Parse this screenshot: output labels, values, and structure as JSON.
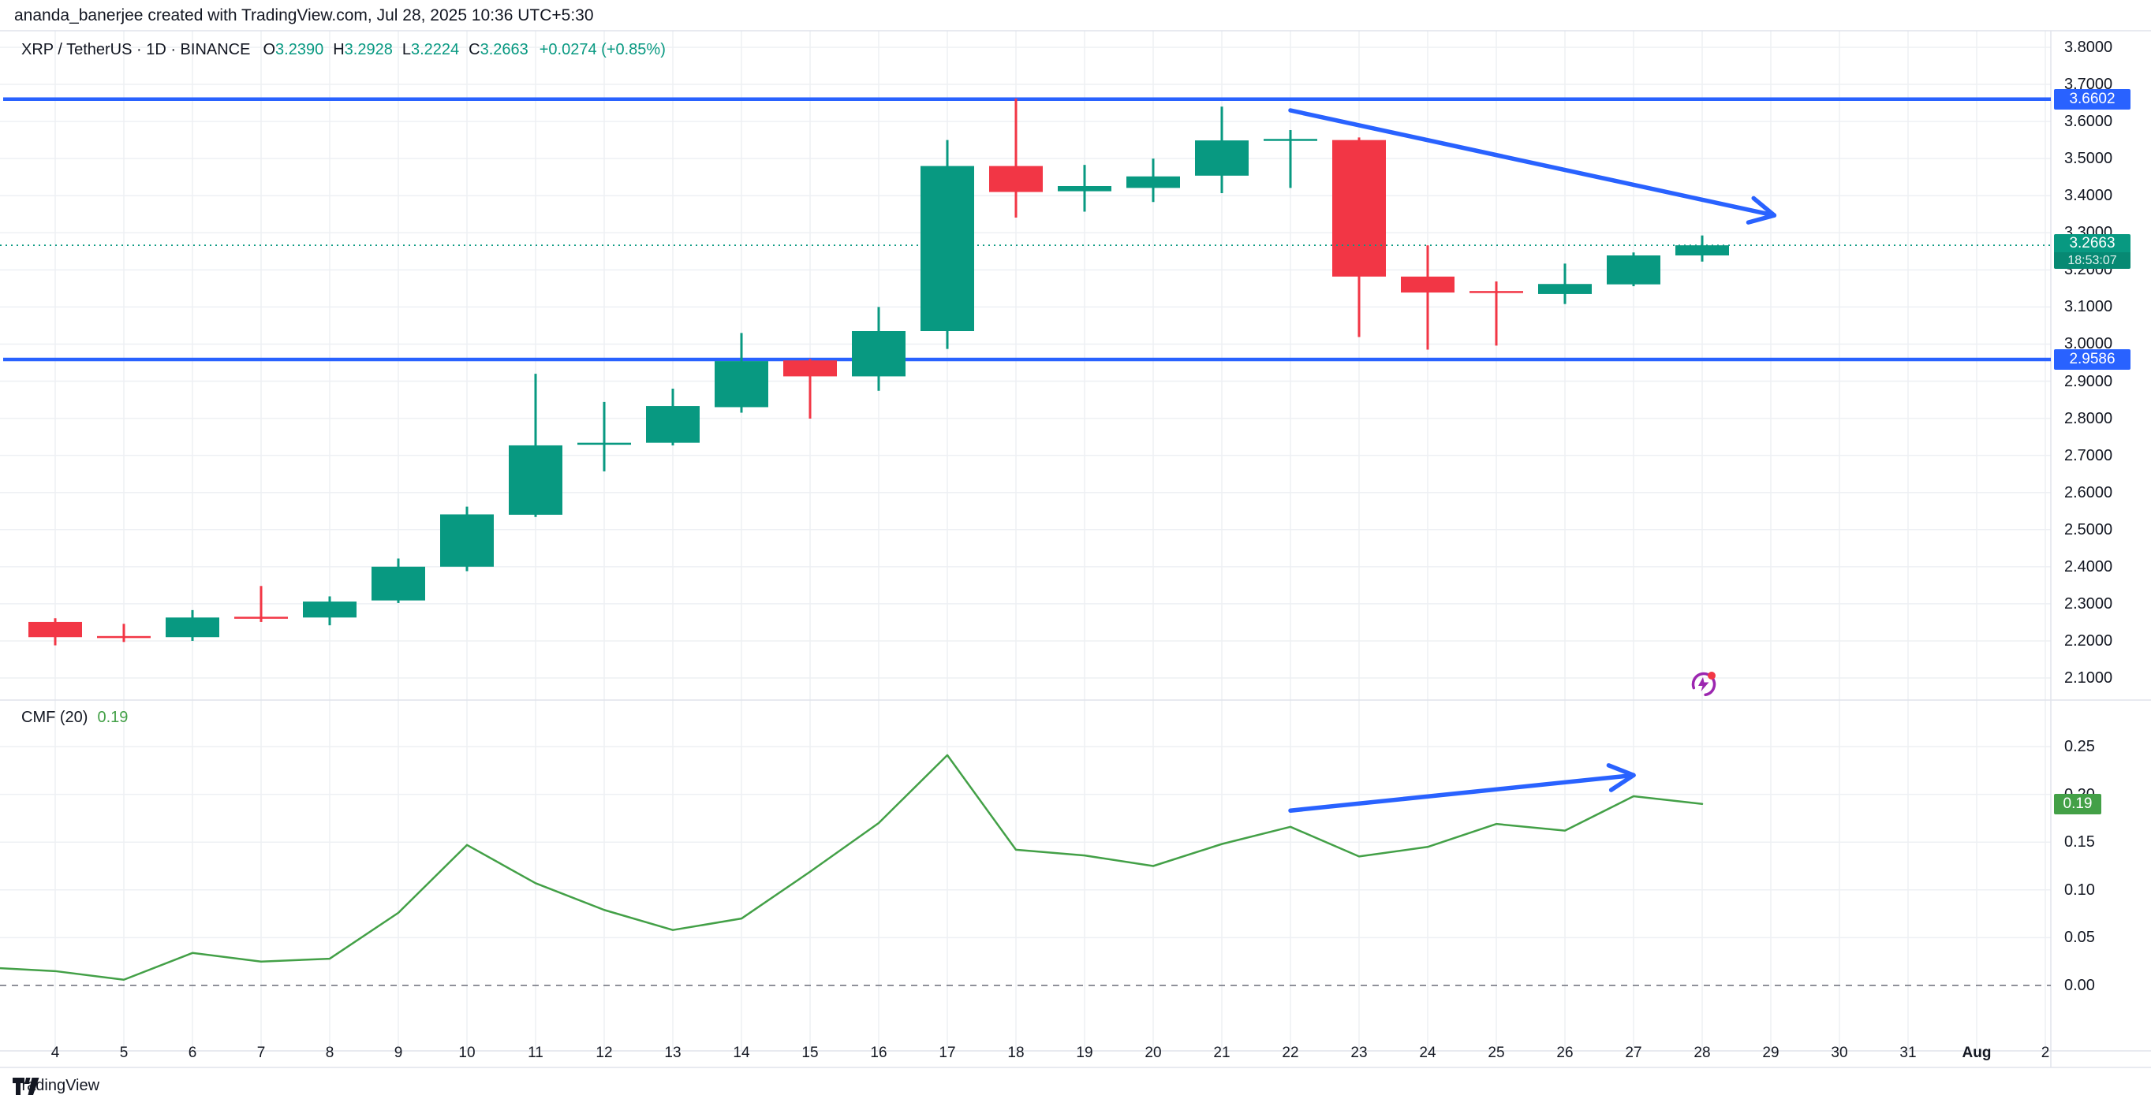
{
  "header": {
    "credit": "ananda_banerjee created with TradingView.com, Jul 28, 2025 10:36 UTC+5:30"
  },
  "legend": {
    "symbol_line": "XRP / TetherUS · 1D · BINANCE",
    "ohlc": [
      {
        "label": "O",
        "value": "3.2390"
      },
      {
        "label": "H",
        "value": "3.2928"
      },
      {
        "label": "L",
        "value": "3.2224"
      },
      {
        "label": "C",
        "value": "3.2663"
      }
    ],
    "change": "+0.0274 (+0.85%)"
  },
  "indicator": {
    "name": "CMF (20)",
    "value": "0.19"
  },
  "price_axis": {
    "labels": [
      "3.8000",
      "3.7000",
      "3.6000",
      "3.5000",
      "3.4000",
      "3.3000",
      "3.2000",
      "3.1000",
      "3.0000",
      "2.9000",
      "2.8000",
      "2.7000",
      "2.6000",
      "2.5000",
      "2.4000",
      "2.3000",
      "2.2000",
      "2.1000"
    ],
    "level_badges": [
      {
        "text": "3.6602"
      },
      {
        "text": "2.9586"
      }
    ],
    "last_badge": {
      "price": "3.2663",
      "countdown": "18:53:07"
    }
  },
  "cmf_axis": {
    "labels": [
      "0.25",
      "0.20",
      "0.15",
      "0.10",
      "0.05",
      "0.00"
    ],
    "badge": "0.19"
  },
  "time_axis": {
    "labels": [
      "4",
      "5",
      "6",
      "7",
      "8",
      "9",
      "10",
      "11",
      "12",
      "13",
      "14",
      "15",
      "16",
      "17",
      "18",
      "19",
      "20",
      "21",
      "22",
      "23",
      "24",
      "25",
      "26",
      "27",
      "28",
      "29",
      "30",
      "31",
      "Aug",
      "2"
    ],
    "bold_label": "Aug"
  },
  "watermark": {
    "brand": "TradingView"
  },
  "colors": {
    "up": "#089981",
    "down": "#F23645",
    "blue": "#2962FF",
    "cmf_line": "#43A047",
    "text": "#131722",
    "grid": "#EEF0F4",
    "axis_border": "#E0E3EB",
    "zero_line": "#6A6D78",
    "icon_purple": "#9C27B0",
    "icon_dot": "#F23645"
  },
  "chart_data": [
    {
      "type": "candlestick",
      "title": "XRP / TetherUS 1D BINANCE",
      "x_dates_july": [
        4,
        5,
        6,
        7,
        8,
        9,
        10,
        11,
        12,
        13,
        14,
        15,
        16,
        17,
        18,
        19,
        20,
        21,
        22,
        23,
        24,
        25,
        26,
        27,
        28
      ],
      "ohlc": [
        [
          2.251,
          2.261,
          2.188,
          2.21
        ],
        [
          2.213,
          2.246,
          2.197,
          2.209
        ],
        [
          2.21,
          2.283,
          2.2,
          2.263
        ],
        [
          2.265,
          2.348,
          2.251,
          2.26
        ],
        [
          2.263,
          2.32,
          2.242,
          2.306
        ],
        [
          2.309,
          2.422,
          2.302,
          2.4
        ],
        [
          2.4,
          2.562,
          2.388,
          2.541
        ],
        [
          2.54,
          2.92,
          2.534,
          2.727
        ],
        [
          2.73,
          2.844,
          2.657,
          2.734
        ],
        [
          2.734,
          2.88,
          2.727,
          2.833
        ],
        [
          2.83,
          3.03,
          2.815,
          2.954
        ],
        [
          2.956,
          2.96,
          2.799,
          2.913
        ],
        [
          2.913,
          3.1,
          2.874,
          3.035
        ],
        [
          3.035,
          3.55,
          2.987,
          3.48
        ],
        [
          3.48,
          3.662,
          3.341,
          3.41
        ],
        [
          3.412,
          3.483,
          3.357,
          3.426
        ],
        [
          3.421,
          3.5,
          3.383,
          3.452
        ],
        [
          3.454,
          3.64,
          3.407,
          3.549
        ],
        [
          3.549,
          3.577,
          3.421,
          3.553
        ],
        [
          3.55,
          3.557,
          3.019,
          3.182
        ],
        [
          3.182,
          3.266,
          2.985,
          3.139
        ],
        [
          3.143,
          3.169,
          2.996,
          3.138
        ],
        [
          3.135,
          3.217,
          3.108,
          3.162
        ],
        [
          3.161,
          3.247,
          3.156,
          3.239
        ],
        [
          3.239,
          3.2928,
          3.2224,
          3.2663
        ]
      ],
      "ylim": [
        2.04,
        3.845
      ],
      "y_ticks": [
        2.1,
        2.2,
        2.3,
        2.4,
        2.5,
        2.6,
        2.7,
        2.8,
        2.9,
        3.0,
        3.1,
        3.2,
        3.3,
        3.4,
        3.5,
        3.6,
        3.7,
        3.8
      ],
      "levels": [
        3.6602,
        2.9586
      ],
      "last_price": 3.2663,
      "grid": true,
      "legend_position": "top-left"
    },
    {
      "type": "line",
      "title": "CMF (20)",
      "x_dates_july": [
        3.2,
        4,
        5,
        6,
        7,
        8,
        9,
        10,
        11,
        12,
        13,
        14,
        15,
        16,
        17,
        18,
        19,
        20,
        21,
        22,
        23,
        24,
        25,
        26,
        27,
        28
      ],
      "values": [
        0.018,
        0.015,
        0.006,
        0.034,
        0.025,
        0.028,
        0.076,
        0.147,
        0.107,
        0.079,
        0.058,
        0.07,
        0.119,
        0.17,
        0.241,
        0.142,
        0.136,
        0.125,
        0.148,
        0.166,
        0.135,
        0.145,
        0.169,
        0.162,
        0.198,
        0.19
      ],
      "last_value": 0.19,
      "ylim": [
        -0.068,
        0.293
      ],
      "y_ticks": [
        0.0,
        0.05,
        0.1,
        0.15,
        0.2,
        0.25
      ],
      "zero_line": 0.0,
      "grid": true
    }
  ],
  "drawings": {
    "price_arrow": {
      "from_day": 22.0,
      "from_price": 3.63,
      "to_day": 29.05,
      "to_price": 3.347
    },
    "cmf_arrow": {
      "from_day": 22.0,
      "from_value": 0.183,
      "to_day": 27.0,
      "to_value": 0.22
    },
    "flash_marker": {
      "day": 28.0,
      "price": 2.083
    }
  }
}
